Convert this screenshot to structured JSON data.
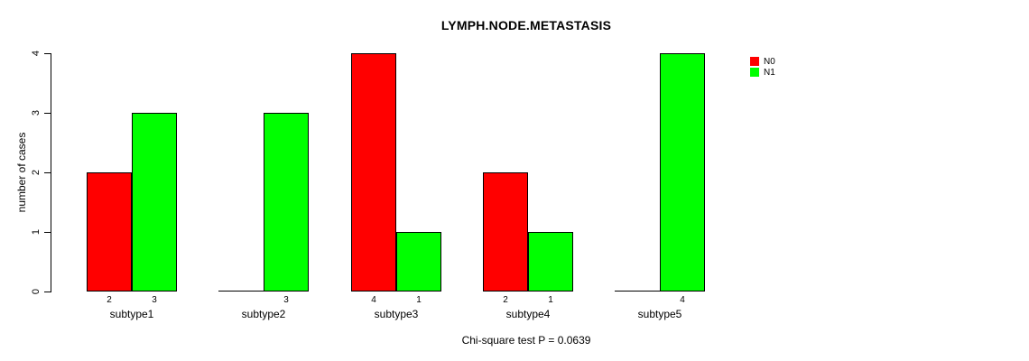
{
  "chart_data": {
    "type": "bar",
    "title": "LYMPH.NODE.METASTASIS",
    "categories": [
      "subtype1",
      "subtype2",
      "subtype3",
      "subtype4",
      "subtype5"
    ],
    "series": [
      {
        "name": "N0",
        "color": "#ff0000",
        "values": [
          2,
          0,
          4,
          2,
          0
        ]
      },
      {
        "name": "N1",
        "color": "#00ff00",
        "values": [
          3,
          3,
          1,
          1,
          4
        ]
      }
    ],
    "xlabel": "",
    "ylabel": "number of cases",
    "ylim": [
      0,
      4
    ],
    "yticks": [
      0,
      1,
      2,
      3,
      4
    ],
    "grid": false,
    "legend_position": "top-right",
    "bar_value_labels": "shown under each bar, omitted when value is 0",
    "annotation": "Chi-square test P = 0.0639"
  }
}
